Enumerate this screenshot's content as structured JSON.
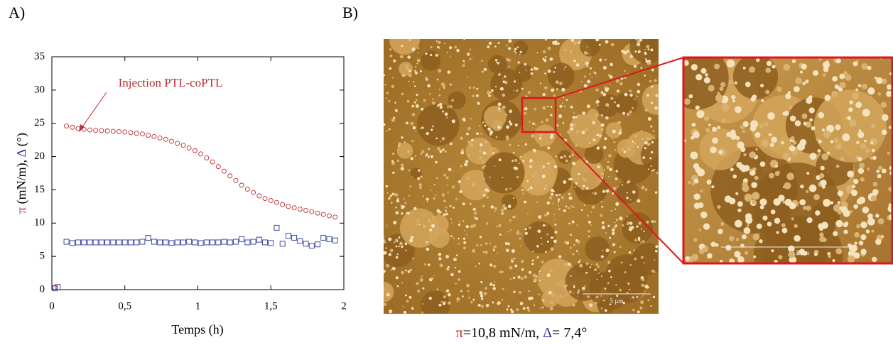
{
  "chart_data": {
    "type": "scatter",
    "panel_a": "A)",
    "panel_b": "B)",
    "annotation": "Injection PTL-coPTL",
    "xlabel": "Temps (h)",
    "ylabel": [
      {
        "text": "π",
        "color": "#c0282d"
      },
      {
        "text": " (mN/m), "
      },
      {
        "text": "Δ",
        "color": "#2b35a0"
      },
      {
        "text": " (°)"
      }
    ],
    "caption": [
      {
        "text": "π",
        "color": "#c0282d"
      },
      {
        "text": "=10,8 mN/m, "
      },
      {
        "text": "Δ",
        "color": "#2b35a0"
      },
      {
        "text": "= 7,4°"
      }
    ],
    "scale_bars": [
      "5 µm",
      "2 µm"
    ],
    "xlim": [
      0,
      2
    ],
    "ylim": [
      0,
      35
    ],
    "xticks": [
      0,
      {
        "value": 0.5,
        "label": "0,5"
      },
      1,
      {
        "value": 1.5,
        "label": "1,5"
      },
      2
    ],
    "yticks": [
      0,
      5,
      10,
      15,
      20,
      25,
      30,
      35
    ],
    "series": [
      {
        "color": "#c0282d",
        "marker": "circle",
        "x": [
          0.02,
          0.1,
          0.14,
          0.18,
          0.22,
          0.26,
          0.3,
          0.34,
          0.38,
          0.42,
          0.46,
          0.5,
          0.54,
          0.58,
          0.62,
          0.66,
          0.7,
          0.74,
          0.78,
          0.82,
          0.86,
          0.9,
          0.94,
          0.98,
          1.02,
          1.06,
          1.1,
          1.14,
          1.18,
          1.22,
          1.26,
          1.3,
          1.34,
          1.38,
          1.42,
          1.46,
          1.5,
          1.54,
          1.58,
          1.62,
          1.66,
          1.7,
          1.74,
          1.78,
          1.82,
          1.86,
          1.9,
          1.94
        ],
        "values": [
          0.3,
          24.6,
          24.4,
          24.2,
          24.1,
          24.0,
          23.95,
          23.9,
          23.85,
          23.8,
          23.75,
          23.7,
          23.6,
          23.5,
          23.4,
          23.2,
          23.0,
          22.8,
          22.6,
          22.3,
          22.0,
          21.7,
          21.3,
          20.9,
          20.4,
          19.8,
          19.2,
          18.5,
          17.8,
          17.1,
          16.4,
          15.7,
          15.1,
          14.6,
          14.1,
          13.7,
          13.4,
          13.1,
          12.8,
          12.5,
          12.3,
          12.1,
          11.9,
          11.7,
          11.5,
          11.3,
          11.1,
          10.9
        ]
      },
      {
        "color": "#2b35a0",
        "marker": "square",
        "x": [
          0.02,
          0.04,
          0.1,
          0.14,
          0.18,
          0.22,
          0.26,
          0.3,
          0.34,
          0.38,
          0.42,
          0.46,
          0.5,
          0.54,
          0.58,
          0.62,
          0.66,
          0.7,
          0.74,
          0.78,
          0.82,
          0.86,
          0.9,
          0.94,
          0.98,
          1.02,
          1.06,
          1.1,
          1.14,
          1.18,
          1.22,
          1.26,
          1.3,
          1.34,
          1.38,
          1.42,
          1.46,
          1.5,
          1.54,
          1.58,
          1.62,
          1.66,
          1.7,
          1.74,
          1.78,
          1.82,
          1.86,
          1.9,
          1.94
        ],
        "values": [
          0.2,
          0.4,
          7.2,
          7.0,
          7.1,
          7.1,
          7.1,
          7.1,
          7.1,
          7.1,
          7.1,
          7.1,
          7.1,
          7.1,
          7.1,
          7.2,
          7.8,
          7.2,
          7.1,
          7.1,
          7.0,
          7.1,
          7.1,
          7.2,
          7.1,
          7.0,
          7.1,
          7.1,
          7.1,
          7.2,
          7.1,
          7.2,
          7.6,
          7.1,
          7.2,
          7.5,
          7.1,
          7.0,
          9.3,
          6.9,
          8.1,
          7.8,
          7.3,
          6.9,
          6.6,
          6.8,
          7.8,
          7.6,
          7.4
        ]
      }
    ]
  }
}
